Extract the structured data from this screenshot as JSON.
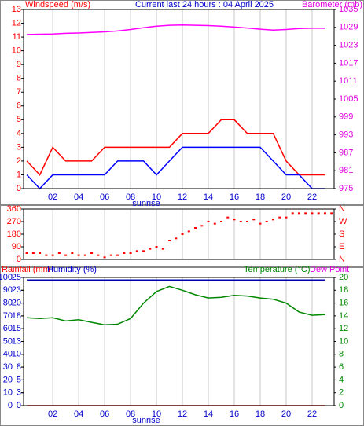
{
  "chart_data": [
    {
      "type": "line",
      "title": "Current last 24 hours : 04 April 2025",
      "annotation": "sunrise",
      "ylabel": "Windspeed (m/s)",
      "y2label": "Barometer (mb)",
      "x": [
        0,
        1,
        2,
        3,
        4,
        5,
        6,
        7,
        8,
        9,
        10,
        11,
        12,
        13,
        14,
        15,
        16,
        17,
        18,
        19,
        20,
        21,
        22,
        23
      ],
      "xlim": [
        -0.25,
        23.7
      ],
      "xticks": [
        {
          "value": 2,
          "label": "02"
        },
        {
          "value": 4,
          "label": "04"
        },
        {
          "value": 6,
          "label": "06"
        },
        {
          "value": 8,
          "label": "08"
        },
        {
          "value": 10,
          "label": "10"
        },
        {
          "value": 12,
          "label": "12"
        },
        {
          "value": 14,
          "label": "14"
        },
        {
          "value": 16,
          "label": "16"
        },
        {
          "value": 18,
          "label": "18"
        },
        {
          "value": 20,
          "label": "20"
        },
        {
          "value": 22,
          "label": "22"
        }
      ],
      "ylim": [
        0,
        13
      ],
      "yticks": [
        0,
        1,
        2,
        3,
        4,
        5,
        6,
        7,
        8,
        9,
        10,
        11,
        12,
        13
      ],
      "y2lim": [
        975,
        1035
      ],
      "y2ticks": [
        975,
        981,
        987,
        993,
        999,
        1005,
        1011,
        1017,
        1023,
        1029,
        1035
      ],
      "grid": true,
      "series": [
        {
          "color": "#ff0000",
          "values": [
            2,
            1,
            3,
            2,
            2,
            2,
            3,
            3,
            3,
            3,
            3,
            3,
            4,
            4,
            4,
            5,
            5,
            4,
            4,
            4,
            2,
            1,
            1,
            1
          ]
        },
        {
          "color": "#0000ff",
          "values": [
            1,
            0,
            1,
            1,
            1,
            1,
            1,
            2,
            2,
            2,
            1,
            2,
            3,
            3,
            3,
            3,
            3,
            3,
            3,
            2,
            1,
            1,
            0,
            0
          ]
        },
        {
          "color": "#ff00ff",
          "axis": "y2",
          "values": [
            1026.6,
            1026.7,
            1026.8,
            1027,
            1027.1,
            1027.3,
            1027.5,
            1027.8,
            1028.3,
            1028.9,
            1029.4,
            1029.7,
            1029.8,
            1029.7,
            1029.6,
            1029.4,
            1029.1,
            1028.8,
            1028.4,
            1028.1,
            1028.3,
            1028.6,
            1028.7,
            1028.7
          ]
        }
      ]
    },
    {
      "type": "scatter",
      "color": "#ff0000",
      "x": [
        0,
        0.5,
        1,
        1.5,
        2,
        2.5,
        3,
        3.5,
        4,
        4.5,
        5,
        5.5,
        6,
        6.5,
        7,
        7.5,
        8,
        8.5,
        9,
        9.5,
        10,
        10.5,
        11,
        11.5,
        12,
        12.5,
        13,
        13.5,
        14,
        14.5,
        15,
        15.5,
        16,
        16.5,
        17,
        17.5,
        18,
        18.5,
        19,
        19.5,
        20,
        20.5,
        21,
        21.5,
        22,
        22.5,
        23,
        23.5
      ],
      "values": [
        45,
        45,
        45,
        30,
        30,
        45,
        30,
        45,
        30,
        30,
        45,
        30,
        15,
        30,
        30,
        45,
        45,
        60,
        60,
        75,
        90,
        75,
        135,
        150,
        180,
        200,
        225,
        240,
        270,
        255,
        270,
        300,
        285,
        270,
        270,
        285,
        255,
        270,
        285,
        300,
        300,
        330,
        330,
        330,
        330,
        330,
        330,
        330
      ],
      "xlim": [
        -0.25,
        23.7
      ],
      "xticks": [
        {
          "value": 2,
          "label": "02"
        },
        {
          "value": 4,
          "label": "04"
        },
        {
          "value": 6,
          "label": "06"
        },
        {
          "value": 8,
          "label": "08"
        },
        {
          "value": 10,
          "label": "10"
        },
        {
          "value": 12,
          "label": "12"
        },
        {
          "value": 14,
          "label": "14"
        },
        {
          "value": 16,
          "label": "16"
        },
        {
          "value": 18,
          "label": "18"
        },
        {
          "value": 20,
          "label": "20"
        },
        {
          "value": 22,
          "label": "22"
        }
      ],
      "ylim": [
        0,
        360
      ],
      "yticks": [
        0,
        90,
        180,
        270,
        360
      ],
      "y2lim": [
        0,
        360
      ],
      "y2ticks": [
        {
          "value": 0,
          "label": "N"
        },
        {
          "value": 90,
          "label": "E"
        },
        {
          "value": 180,
          "label": "S"
        },
        {
          "value": 270,
          "label": "W"
        },
        {
          "value": 360,
          "label": "N"
        }
      ],
      "grid": true
    },
    {
      "type": "line",
      "annotation": "sunrise",
      "y3label": "Rainfall (mm",
      "ylabel": "Humidity (%)",
      "y2label": "Temperature (°C)",
      "dewpoint_label": "Dew Point",
      "x": [
        0,
        1,
        2,
        3,
        4,
        5,
        6,
        7,
        8,
        9,
        10,
        11,
        12,
        13,
        14,
        15,
        16,
        17,
        18,
        19,
        20,
        21,
        22,
        23
      ],
      "xlim": [
        -0.25,
        23.7
      ],
      "xticks": [
        {
          "value": 2,
          "label": "02"
        },
        {
          "value": 4,
          "label": "04"
        },
        {
          "value": 6,
          "label": "06"
        },
        {
          "value": 8,
          "label": "08"
        },
        {
          "value": 10,
          "label": "10"
        },
        {
          "value": 12,
          "label": "12"
        },
        {
          "value": 14,
          "label": "14"
        },
        {
          "value": 16,
          "label": "16"
        },
        {
          "value": 18,
          "label": "18"
        },
        {
          "value": 20,
          "label": "20"
        },
        {
          "value": 22,
          "label": "22"
        }
      ],
      "ylim": [
        0,
        100
      ],
      "yticks": [
        0,
        10,
        20,
        30,
        40,
        50,
        60,
        70,
        80,
        90,
        100
      ],
      "y3lim": [
        0,
        25
      ],
      "y3ticks": [
        0,
        {
          "value": 2.5,
          "label": "3"
        },
        5,
        {
          "value": 7.5,
          "label": "8"
        },
        10,
        {
          "value": 12.5,
          "label": "13"
        },
        15,
        {
          "value": 17.5,
          "label": "18"
        },
        20,
        {
          "value": 22.5,
          "label": "23"
        },
        25
      ],
      "y2lim": [
        0,
        20
      ],
      "y2ticks": [
        0,
        2,
        4,
        6,
        8,
        10,
        12,
        14,
        16,
        18,
        20
      ],
      "grid": true,
      "series": [
        {
          "color": "#ff0000",
          "axis": "y3",
          "values": [
            0,
            0,
            0,
            0,
            0,
            0,
            0,
            0,
            0,
            0,
            0,
            0,
            0,
            0,
            0,
            0,
            0,
            0,
            0,
            0,
            0,
            0,
            0,
            0
          ]
        },
        {
          "color": "#0000aa",
          "values": [
            98,
            98,
            98,
            98,
            98,
            98,
            98,
            98,
            98,
            98,
            98,
            98,
            98,
            98,
            98,
            98,
            98,
            98,
            98,
            98,
            98,
            98,
            98,
            98
          ]
        },
        {
          "color": "#008800",
          "axis": "y2",
          "values": [
            13.7,
            13.6,
            13.7,
            13.2,
            13.4,
            13.0,
            12.6,
            12.7,
            13.6,
            16.0,
            17.8,
            18.6,
            18.0,
            17.3,
            16.8,
            16.9,
            17.2,
            17.1,
            16.8,
            16.6,
            16.0,
            14.6,
            14.1,
            14.2
          ]
        }
      ]
    }
  ]
}
